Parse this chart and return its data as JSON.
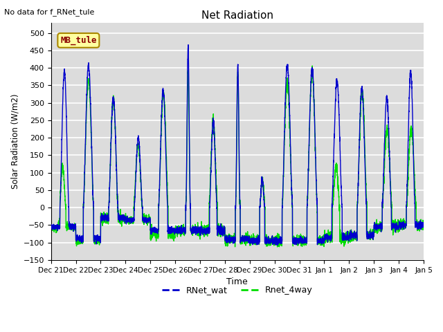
{
  "title": "Net Radiation",
  "xlabel": "Time",
  "ylabel": "Solar Radiation (W/m2)",
  "annotation_text": "No data for f_RNet_tule",
  "legend_box_text": "MB_tule",
  "legend_line1": "RNet_wat",
  "legend_line2": "Rnet_4way",
  "color_blue": "#0000CC",
  "color_green": "#00DD00",
  "ylim_min": -150,
  "ylim_max": 530,
  "yticks": [
    -150,
    -100,
    -50,
    0,
    50,
    100,
    150,
    200,
    250,
    300,
    350,
    400,
    450,
    500
  ],
  "background_color": "#DCDCDC",
  "plot_bg_color": "#DCDCDC",
  "grid_color": "white",
  "days": [
    "Dec 21",
    "Dec 22",
    "Dec 23",
    "Dec 24",
    "Dec 25",
    "Dec 26",
    "Dec 27",
    "Dec 28",
    "Dec 29",
    "Dec 30",
    "Dec 31",
    "Jan 1",
    "Jan 2",
    "Jan 3",
    "Jan 4",
    "Jan 5"
  ],
  "figwidth": 6.4,
  "figheight": 4.8,
  "dpi": 100
}
